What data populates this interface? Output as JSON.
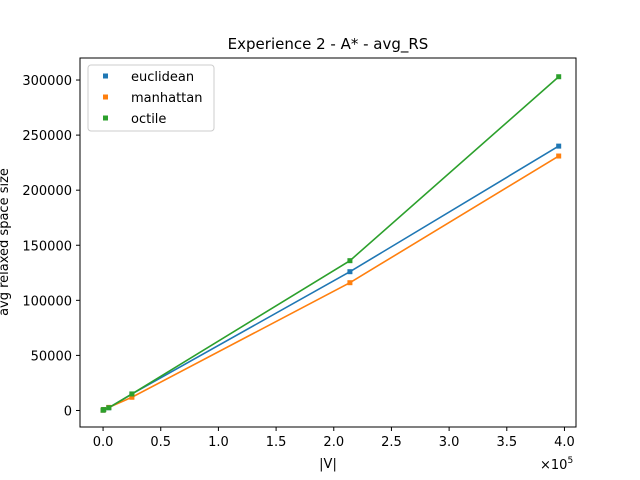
{
  "chart_data": {
    "type": "line",
    "title": "Experience 2 - A* - avg_RS",
    "xlabel": "|V|",
    "ylabel": "avg relaxed space size",
    "x_multiplier_label": "×10",
    "x_multiplier_exponent": "5",
    "xlim": [
      -0.2,
      4.1
    ],
    "ylim": [
      -15000,
      320000
    ],
    "xticks": [
      0.0,
      0.5,
      1.0,
      1.5,
      2.0,
      2.5,
      3.0,
      3.5,
      4.0
    ],
    "xtick_labels": [
      "0.0",
      "0.5",
      "1.0",
      "1.5",
      "2.0",
      "2.5",
      "3.0",
      "3.5",
      "4.0"
    ],
    "yticks": [
      0,
      50000,
      100000,
      150000,
      200000,
      250000,
      300000
    ],
    "ytick_labels": [
      "0",
      "50000",
      "100000",
      "150000",
      "200000",
      "250000",
      "300000"
    ],
    "grid": false,
    "legend_position": "top-left",
    "series": [
      {
        "name": "euclidean",
        "color": "#1f77b4",
        "x": [
          0.0,
          0.005,
          0.05,
          0.25,
          2.14,
          3.95
        ],
        "y": [
          300,
          800,
          2500,
          15000,
          126000,
          240000
        ]
      },
      {
        "name": "manhattan",
        "color": "#ff7f0e",
        "x": [
          0.0,
          0.005,
          0.05,
          0.25,
          2.14,
          3.95
        ],
        "y": [
          300,
          800,
          2800,
          12000,
          116000,
          231000
        ]
      },
      {
        "name": "octile",
        "color": "#2ca02c",
        "x": [
          0.0,
          0.005,
          0.05,
          0.25,
          2.14,
          3.95
        ],
        "y": [
          300,
          800,
          2500,
          15000,
          136000,
          303000
        ]
      }
    ]
  }
}
